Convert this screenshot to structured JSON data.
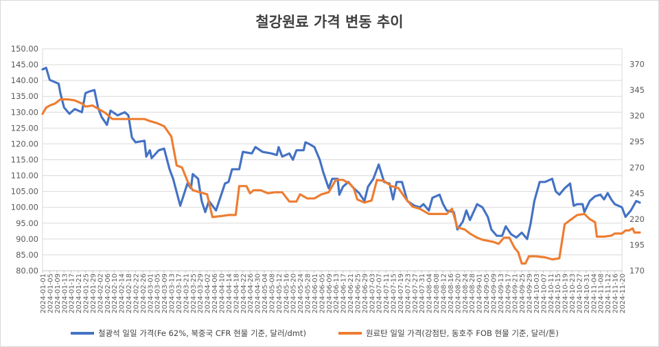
{
  "chart_data": {
    "type": "line",
    "title": "철강원료 가격 변동 추이",
    "y_left": {
      "min": 80,
      "max": 150,
      "step": 5,
      "ticks": [
        "150.00",
        "145.00",
        "140.00",
        "135.00",
        "130.00",
        "125.00",
        "120.00",
        "115.00",
        "110.00",
        "105.00",
        "100.00",
        "95.00",
        "90.00",
        "85.00",
        "80.00"
      ]
    },
    "y_right": {
      "min": 170,
      "max": 385,
      "ticks": [
        370,
        345,
        320,
        295,
        270,
        245,
        220,
        195,
        170
      ]
    },
    "x_axis": {
      "start": "2024-01-01",
      "end": "2024-11-20",
      "tick_labels": [
        "2024-01-01",
        "2024-01-05",
        "2024-01-09",
        "2024-01-13",
        "2024-01-17",
        "2024-01-21",
        "2024-01-25",
        "2024-01-29",
        "2024-02-02",
        "2024-02-06",
        "2024-02-10",
        "2024-02-14",
        "2024-02-18",
        "2024-02-22",
        "2024-02-26",
        "2024-03-01",
        "2024-03-05",
        "2024-03-09",
        "2024-03-13",
        "2024-03-17",
        "2024-03-21",
        "2024-03-25",
        "2024-03-29",
        "2024-04-02",
        "2024-04-06",
        "2024-04-10",
        "2024-04-14",
        "2024-04-18",
        "2024-04-22",
        "2024-04-26",
        "2024-04-30",
        "2024-05-04",
        "2024-05-08",
        "2024-05-12",
        "2024-05-16",
        "2024-05-20",
        "2024-05-24",
        "2024-05-28",
        "2024-06-01",
        "2024-06-05",
        "2024-06-09",
        "2024-06-13",
        "2024-06-17",
        "2024-06-21",
        "2024-06-25",
        "2024-06-29",
        "2024-07-03",
        "2024-07-07",
        "2024-07-11",
        "2024-07-15",
        "2024-07-19",
        "2024-07-23",
        "2024-07-27",
        "2024-07-31",
        "2024-08-04",
        "2024-08-08",
        "2024-08-12",
        "2024-08-16",
        "2024-08-20",
        "2024-08-24",
        "2024-08-28",
        "2024-09-01",
        "2024-09-05",
        "2024-09-09",
        "2024-09-13",
        "2024-09-17",
        "2024-09-21",
        "2024-09-25",
        "2024-09-29",
        "2024-10-03",
        "2024-10-07",
        "2024-10-11",
        "2024-10-15",
        "2024-10-19",
        "2024-10-23",
        "2024-10-27",
        "2024-10-31",
        "2024-11-04",
        "2024-11-08",
        "2024-11-12",
        "2024-11-16",
        "2024-11-20"
      ]
    },
    "grid": "horizontal",
    "legend_position": "bottom",
    "series": [
      {
        "name": "철광석 일일 가격(Fe 62%, 북중국 CFR 현물 기준, 달러/dmt)",
        "axis": "left",
        "color": "#4472C4",
        "points": [
          [
            "2024-01-01",
            143.5
          ],
          [
            "2024-01-03",
            144
          ],
          [
            "2024-01-05",
            140.2
          ],
          [
            "2024-01-10",
            139
          ],
          [
            "2024-01-11",
            136
          ],
          [
            "2024-01-13",
            131.5
          ],
          [
            "2024-01-16",
            129.5
          ],
          [
            "2024-01-19",
            131
          ],
          [
            "2024-01-23",
            130
          ],
          [
            "2024-01-25",
            136
          ],
          [
            "2024-01-27",
            136.5
          ],
          [
            "2024-01-30",
            137
          ],
          [
            "2024-02-01",
            131.5
          ],
          [
            "2024-02-03",
            128.5
          ],
          [
            "2024-02-06",
            126
          ],
          [
            "2024-02-08",
            130.5
          ],
          [
            "2024-02-12",
            129
          ],
          [
            "2024-02-16",
            130
          ],
          [
            "2024-02-18",
            129
          ],
          [
            "2024-02-20",
            122
          ],
          [
            "2024-02-22",
            120.5
          ],
          [
            "2024-02-27",
            121
          ],
          [
            "2024-02-28",
            116
          ],
          [
            "2024-03-01",
            118
          ],
          [
            "2024-03-02",
            115.5
          ],
          [
            "2024-03-06",
            118
          ],
          [
            "2024-03-09",
            118.5
          ],
          [
            "2024-03-12",
            112
          ],
          [
            "2024-03-14",
            109
          ],
          [
            "2024-03-18",
            100.5
          ],
          [
            "2024-03-22",
            107.5
          ],
          [
            "2024-03-24",
            106
          ],
          [
            "2024-03-25",
            110.5
          ],
          [
            "2024-03-28",
            109
          ],
          [
            "2024-03-30",
            102
          ],
          [
            "2024-04-01",
            98.5
          ],
          [
            "2024-04-03",
            102
          ],
          [
            "2024-04-07",
            99
          ],
          [
            "2024-04-12",
            107.5
          ],
          [
            "2024-04-14",
            108
          ],
          [
            "2024-04-16",
            112
          ],
          [
            "2024-04-20",
            112
          ],
          [
            "2024-04-22",
            117.5
          ],
          [
            "2024-04-27",
            117
          ],
          [
            "2024-04-29",
            119
          ],
          [
            "2024-05-03",
            117.5
          ],
          [
            "2024-05-08",
            117
          ],
          [
            "2024-05-11",
            116.5
          ],
          [
            "2024-05-12",
            119
          ],
          [
            "2024-05-14",
            116
          ],
          [
            "2024-05-18",
            117
          ],
          [
            "2024-05-20",
            115
          ],
          [
            "2024-05-22",
            118
          ],
          [
            "2024-05-26",
            118
          ],
          [
            "2024-05-27",
            120.5
          ],
          [
            "2024-05-29",
            120
          ],
          [
            "2024-06-01",
            119
          ],
          [
            "2024-06-04",
            115
          ],
          [
            "2024-06-06",
            111
          ],
          [
            "2024-06-09",
            106
          ],
          [
            "2024-06-11",
            109
          ],
          [
            "2024-06-14",
            109
          ],
          [
            "2024-06-15",
            104
          ],
          [
            "2024-06-17",
            106.5
          ],
          [
            "2024-06-20",
            108
          ],
          [
            "2024-06-23",
            106
          ],
          [
            "2024-06-26",
            104.5
          ],
          [
            "2024-06-29",
            102
          ],
          [
            "2024-07-01",
            106.5
          ],
          [
            "2024-07-04",
            109
          ],
          [
            "2024-07-07",
            113.5
          ],
          [
            "2024-07-10",
            108
          ],
          [
            "2024-07-13",
            107.5
          ],
          [
            "2024-07-15",
            102.5
          ],
          [
            "2024-07-17",
            108
          ],
          [
            "2024-07-20",
            108
          ],
          [
            "2024-07-23",
            102
          ],
          [
            "2024-07-27",
            100.5
          ],
          [
            "2024-07-30",
            100
          ],
          [
            "2024-08-01",
            101
          ],
          [
            "2024-08-04",
            99
          ],
          [
            "2024-08-06",
            103
          ],
          [
            "2024-08-10",
            104
          ],
          [
            "2024-08-12",
            101
          ],
          [
            "2024-08-14",
            99
          ],
          [
            "2024-08-18",
            98.5
          ],
          [
            "2024-08-20",
            93
          ],
          [
            "2024-08-23",
            95.5
          ],
          [
            "2024-08-25",
            99
          ],
          [
            "2024-08-27",
            96
          ],
          [
            "2024-08-31",
            101
          ],
          [
            "2024-09-03",
            100
          ],
          [
            "2024-09-06",
            97
          ],
          [
            "2024-09-08",
            93
          ],
          [
            "2024-09-11",
            91
          ],
          [
            "2024-09-14",
            91
          ],
          [
            "2024-09-16",
            94
          ],
          [
            "2024-09-19",
            91.5
          ],
          [
            "2024-09-22",
            90.5
          ],
          [
            "2024-09-25",
            92
          ],
          [
            "2024-09-28",
            90
          ],
          [
            "2024-09-30",
            95
          ],
          [
            "2024-10-02",
            102
          ],
          [
            "2024-10-05",
            108
          ],
          [
            "2024-10-08",
            108
          ],
          [
            "2024-10-12",
            109
          ],
          [
            "2024-10-14",
            105
          ],
          [
            "2024-10-16",
            104
          ],
          [
            "2024-10-19",
            106
          ],
          [
            "2024-10-22",
            107.5
          ],
          [
            "2024-10-24",
            100.5
          ],
          [
            "2024-10-26",
            101
          ],
          [
            "2024-10-29",
            101
          ],
          [
            "2024-10-30",
            98.5
          ],
          [
            "2024-11-02",
            102
          ],
          [
            "2024-11-05",
            103.5
          ],
          [
            "2024-11-08",
            104
          ],
          [
            "2024-11-10",
            102.5
          ],
          [
            "2024-11-12",
            104.5
          ],
          [
            "2024-11-14",
            102.5
          ],
          [
            "2024-11-16",
            101
          ],
          [
            "2024-11-20",
            100
          ],
          [
            "2024-11-22",
            97
          ],
          [
            "2024-11-25",
            99
          ],
          [
            "2024-11-28",
            102
          ],
          [
            "2024-11-30",
            101.5
          ]
        ]
      },
      {
        "name": "원료탄 일일 가격(강점탄, 동호주 FOB 현물 기준, 달러/톤)",
        "axis": "right",
        "color": "#ED7D31",
        "points": [
          [
            "2024-01-01",
            322
          ],
          [
            "2024-01-03",
            328
          ],
          [
            "2024-01-05",
            330
          ],
          [
            "2024-01-08",
            332
          ],
          [
            "2024-01-11",
            336
          ],
          [
            "2024-01-15",
            336
          ],
          [
            "2024-01-19",
            335
          ],
          [
            "2024-01-23",
            332
          ],
          [
            "2024-01-25",
            329
          ],
          [
            "2024-01-29",
            330
          ],
          [
            "2024-02-01",
            327
          ],
          [
            "2024-02-05",
            323
          ],
          [
            "2024-02-09",
            317
          ],
          [
            "2024-02-27",
            317
          ],
          [
            "2024-03-01",
            315
          ],
          [
            "2024-03-05",
            313
          ],
          [
            "2024-03-09",
            310
          ],
          [
            "2024-03-13",
            300
          ],
          [
            "2024-03-16",
            272
          ],
          [
            "2024-03-19",
            270
          ],
          [
            "2024-03-22",
            257
          ],
          [
            "2024-03-25",
            248
          ],
          [
            "2024-03-29",
            246
          ],
          [
            "2024-04-02",
            244
          ],
          [
            "2024-04-05",
            222
          ],
          [
            "2024-04-10",
            223
          ],
          [
            "2024-04-14",
            224
          ],
          [
            "2024-04-18",
            224
          ],
          [
            "2024-04-20",
            252
          ],
          [
            "2024-04-24",
            252
          ],
          [
            "2024-04-26",
            245
          ],
          [
            "2024-04-28",
            248
          ],
          [
            "2024-05-02",
            248
          ],
          [
            "2024-05-06",
            245
          ],
          [
            "2024-05-10",
            246
          ],
          [
            "2024-05-14",
            246
          ],
          [
            "2024-05-18",
            237
          ],
          [
            "2024-05-22",
            237
          ],
          [
            "2024-05-24",
            244
          ],
          [
            "2024-05-28",
            240
          ],
          [
            "2024-06-01",
            240
          ],
          [
            "2024-06-05",
            244
          ],
          [
            "2024-06-09",
            246
          ],
          [
            "2024-06-13",
            258
          ],
          [
            "2024-06-17",
            258
          ],
          [
            "2024-06-21",
            254
          ],
          [
            "2024-06-23",
            250
          ],
          [
            "2024-06-25",
            239
          ],
          [
            "2024-06-29",
            236
          ],
          [
            "2024-07-03",
            238
          ],
          [
            "2024-07-06",
            258
          ],
          [
            "2024-07-10",
            257
          ],
          [
            "2024-07-14",
            252
          ],
          [
            "2024-07-18",
            250
          ],
          [
            "2024-07-22",
            240
          ],
          [
            "2024-07-26",
            232
          ],
          [
            "2024-07-30",
            230
          ],
          [
            "2024-08-04",
            225
          ],
          [
            "2024-08-14",
            225
          ],
          [
            "2024-08-17",
            230
          ],
          [
            "2024-08-20",
            212
          ],
          [
            "2024-08-24",
            210
          ],
          [
            "2024-08-27",
            206
          ],
          [
            "2024-08-31",
            202
          ],
          [
            "2024-09-03",
            200
          ],
          [
            "2024-09-06",
            199
          ],
          [
            "2024-09-09",
            198
          ],
          [
            "2024-09-12",
            196
          ],
          [
            "2024-09-15",
            202
          ],
          [
            "2024-09-18",
            202
          ],
          [
            "2024-09-21",
            192
          ],
          [
            "2024-09-23",
            188
          ],
          [
            "2024-09-25",
            177
          ],
          [
            "2024-09-27",
            177
          ],
          [
            "2024-09-29",
            184
          ],
          [
            "2024-10-03",
            184
          ],
          [
            "2024-10-08",
            183
          ],
          [
            "2024-10-12",
            181
          ],
          [
            "2024-10-16",
            182
          ],
          [
            "2024-10-19",
            215
          ],
          [
            "2024-10-22",
            219
          ],
          [
            "2024-10-26",
            224
          ],
          [
            "2024-10-30",
            225
          ],
          [
            "2024-11-02",
            220
          ],
          [
            "2024-11-05",
            217
          ],
          [
            "2024-11-06",
            203
          ],
          [
            "2024-11-10",
            203
          ],
          [
            "2024-11-14",
            204
          ],
          [
            "2024-11-16",
            206
          ],
          [
            "2024-11-20",
            206
          ],
          [
            "2024-11-22",
            209
          ],
          [
            "2024-11-24",
            209
          ],
          [
            "2024-11-26",
            211
          ],
          [
            "2024-11-27",
            207
          ],
          [
            "2024-11-30",
            207
          ]
        ]
      }
    ]
  }
}
